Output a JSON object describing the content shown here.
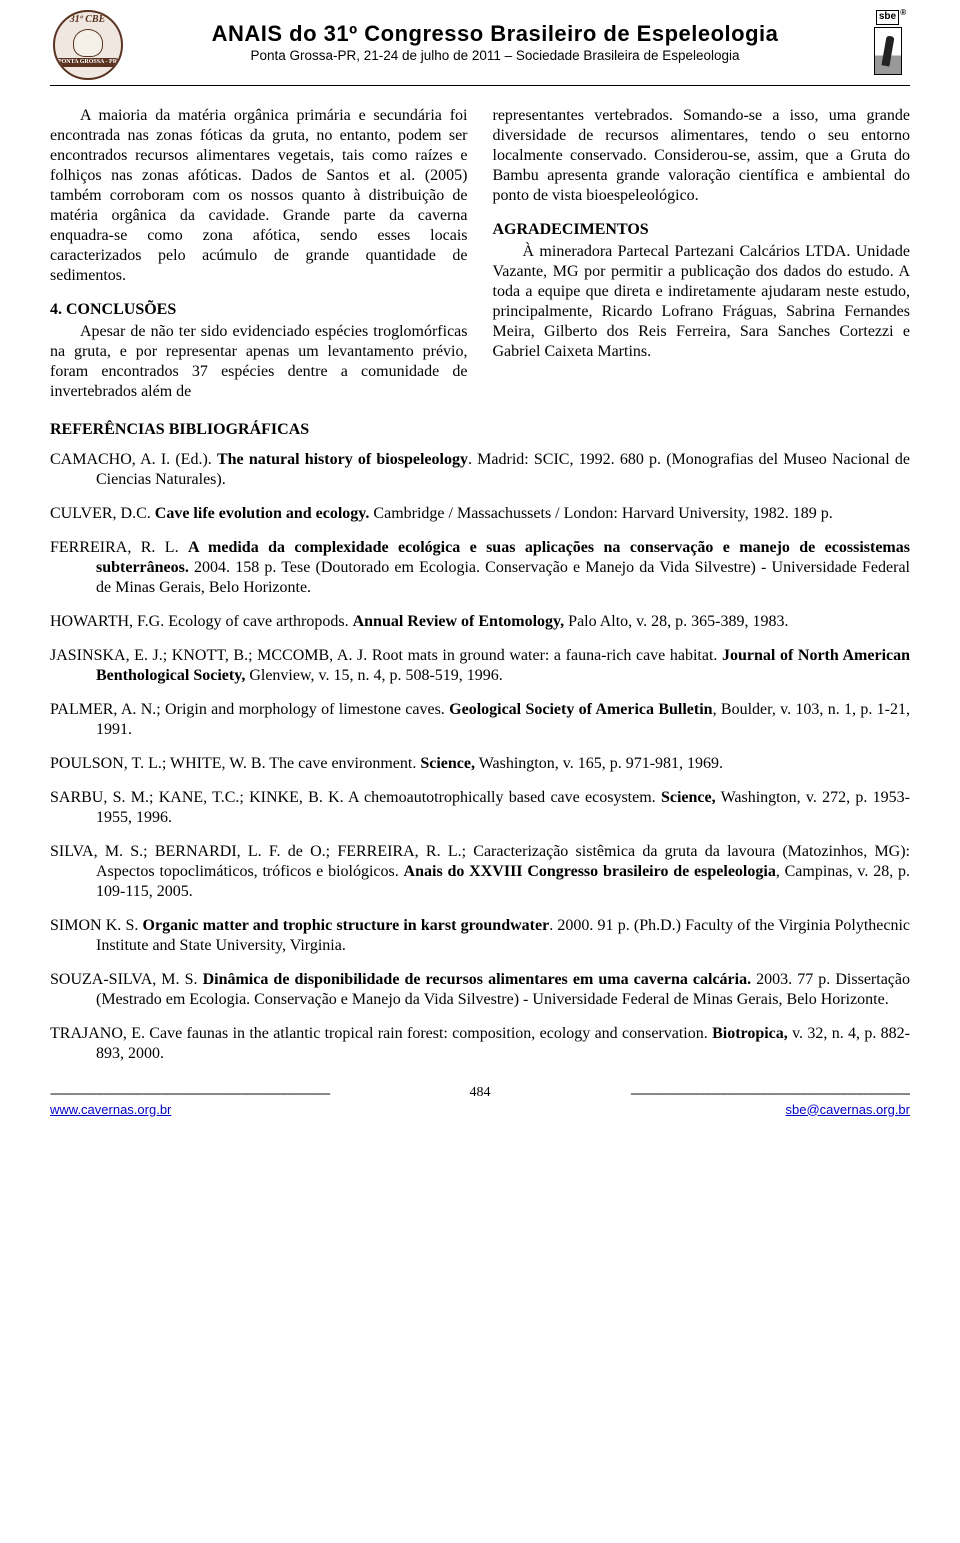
{
  "colors": {
    "text": "#000000",
    "background": "#ffffff",
    "link": "#0000cc",
    "logo_brown": "#5a3320",
    "logo_cream": "#f0e8e0"
  },
  "header": {
    "logo_left_top": "31º CBE",
    "logo_left_bottom": "PONTA GROSSA - PR",
    "title": "ANAIS do 31º Congresso Brasileiro de Espeleologia",
    "subtitle": "Ponta Grossa-PR, 21-24 de julho de 2011 – Sociedade Brasileira de Espeleologia",
    "logo_right_label": "sbe",
    "logo_right_reg": "®"
  },
  "body": {
    "col1_p1": "A maioria da matéria orgânica primária e secundária foi encontrada nas zonas fóticas da gruta, no entanto, podem ser encontrados recursos alimentares vegetais, tais como raízes e folhiços nas zonas afóticas. Dados de Santos et al. (2005) também corroboram com os nossos quanto à distribuição de matéria orgânica da cavidade. Grande parte da caverna enquadra-se como zona afótica, sendo esses locais caracterizados pelo acúmulo de grande quantidade de sedimentos.",
    "h_conclusoes": "4. CONCLUSÕES",
    "col1_p2": "Apesar de não ter sido evidenciado espécies troglomórficas na gruta, e por representar apenas um levantamento prévio, foram encontrados 37 espécies dentre a comunidade de invertebrados além de",
    "col2_p1": "representantes vertebrados. Somando-se a isso, uma grande diversidade de recursos alimentares, tendo o seu entorno localmente conservado. Considerou-se, assim, que a Gruta do Bambu apresenta grande valoração científica e ambiental do ponto de vista bioespeleológico.",
    "h_agradecimentos": "AGRADECIMENTOS",
    "col2_p2": "À mineradora Partecal Partezani Calcários LTDA. Unidade Vazante, MG por permitir a publicação dos dados do estudo. A toda a equipe que direta e indiretamente ajudaram neste estudo, principalmente, Ricardo Lofrano Fráguas, Sabrina Fernandes Meira, Gilberto dos Reis Ferreira, Sara Sanches Cortezzi e Gabriel Caixeta Martins.",
    "h_referencias": "REFERÊNCIAS BIBLIOGRÁFICAS"
  },
  "references": [
    {
      "pre": "CAMACHO, A. I. (Ed.). ",
      "bold": "The natural history of biospeleology",
      "post": ". Madrid: SCIC, 1992. 680 p. (Monografias del Museo Nacional de Ciencias Naturales)."
    },
    {
      "pre": "CULVER, D.C. ",
      "bold": "Cave life evolution and ecology.",
      "post": " Cambridge / Massachussets / London: Harvard University, 1982. 189 p."
    },
    {
      "pre": "FERREIRA, R. L. ",
      "bold": "A medida da complexidade ecológica e suas aplicações na conservação e manejo de ecossistemas subterrâneos.",
      "post": " 2004. 158 p. Tese (Doutorado em Ecologia. Conservação e Manejo da Vida Silvestre) - Universidade Federal de Minas Gerais, Belo Horizonte."
    },
    {
      "pre": "HOWARTH, F.G. Ecology of cave arthropods. ",
      "bold": "Annual Review of Entomology,",
      "post": " Palo Alto, v. 28, p. 365-389, 1983."
    },
    {
      "pre": "JASINSKA, E. J.; KNOTT, B.; MCCOMB, A. J. Root mats in ground water: a fauna-rich cave habitat. ",
      "bold": "Journal of North American Benthological Society,",
      "post": " Glenview, v. 15, n. 4, p. 508-519, 1996."
    },
    {
      "pre": "PALMER, A. N.; Origin and morphology of limestone caves. ",
      "bold": "Geological Society of America Bulletin",
      "post": ", Boulder, v. 103, n. 1, p. 1-21, 1991."
    },
    {
      "pre": "POULSON, T. L.; WHITE, W. B. The cave environment. ",
      "bold": "Science,",
      "post": " Washington, v. 165, p. 971-981, 1969."
    },
    {
      "pre": "SARBU, S. M.; KANE, T.C.; KINKE, B. K. A chemoautotrophically based cave ecosystem. ",
      "bold": "Science,",
      "post": " Washington, v. 272, p. 1953-1955, 1996."
    },
    {
      "pre": "SILVA, M. S.; BERNARDI, L. F. de O.; FERREIRA, R. L.; Caracterização sistêmica da gruta da lavoura (Matozinhos, MG): Aspectos topoclimáticos, tróficos e biológicos. ",
      "bold": "Anais do XXVIII Congresso brasileiro de espeleologia",
      "post": ", Campinas, v. 28, p. 109-115, 2005."
    },
    {
      "pre": "SIMON K. S. ",
      "bold": "Organic matter and trophic structure in karst groundwater",
      "post": ". 2000. 91 p. (Ph.D.) Faculty of the Virginia Polythecnic Institute and State University, Virginia."
    },
    {
      "pre": "SOUZA-SILVA, M. S. ",
      "bold": "Dinâmica de disponibilidade de recursos alimentares em uma caverna calcária.",
      "post": " 2003. 77 p. Dissertação (Mestrado em Ecologia. Conservação e Manejo da Vida Silvestre) - Universidade Federal de Minas Gerais, Belo Horizonte."
    },
    {
      "pre": "TRAJANO, E. Cave faunas in the atlantic tropical rain forest: composition, ecology and conservation. ",
      "bold": "Biotropica,",
      "post": " v. 32, n. 4, p. 882-893, 2000."
    }
  ],
  "footer": {
    "page": "484",
    "left_link": "www.cavernas.org.br",
    "right_link": "sbe@cavernas.org.br",
    "dash": "------------------------------------------------------------------------------------"
  }
}
